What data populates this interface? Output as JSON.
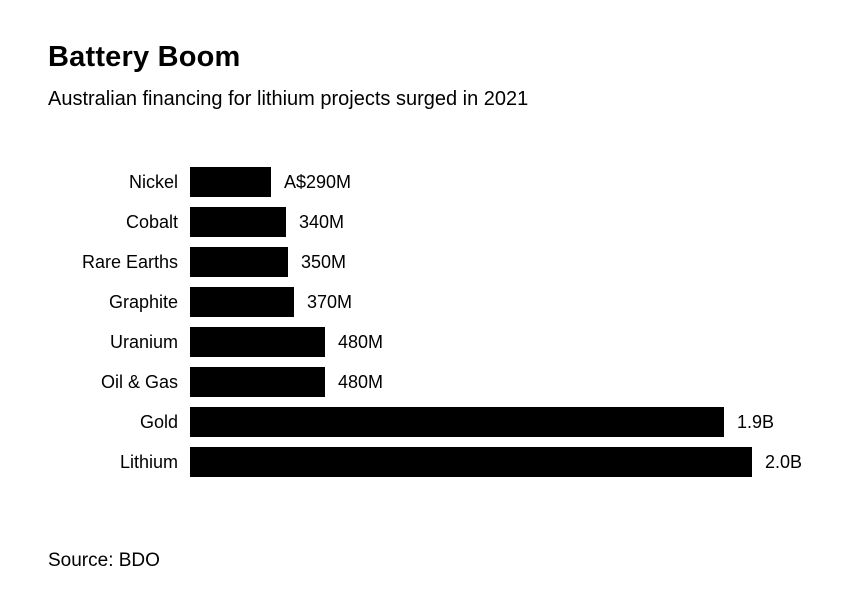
{
  "header": {
    "title": "Battery Boom",
    "subtitle": "Australian financing for lithium projects surged in 2021"
  },
  "footer": {
    "source": "Source: BDO"
  },
  "chart_data": {
    "type": "bar",
    "orientation": "horizontal",
    "title": "Battery Boom",
    "subtitle": "Australian financing for lithium projects surged in 2021",
    "categories": [
      "Nickel",
      "Cobalt",
      "Rare Earths",
      "Graphite",
      "Uranium",
      "Oil & Gas",
      "Gold",
      "Lithium"
    ],
    "values_millions_aud": [
      290,
      340,
      350,
      370,
      480,
      480,
      1900,
      2000
    ],
    "value_labels": [
      "A$290M",
      "340M",
      "350M",
      "370M",
      "480M",
      "480M",
      "1.9B",
      "2.0B"
    ],
    "xlim": [
      0,
      2000
    ],
    "bar_color": "#000000",
    "background_color": "#ffffff",
    "grid": false,
    "legend": false,
    "source": "Source: BDO"
  }
}
